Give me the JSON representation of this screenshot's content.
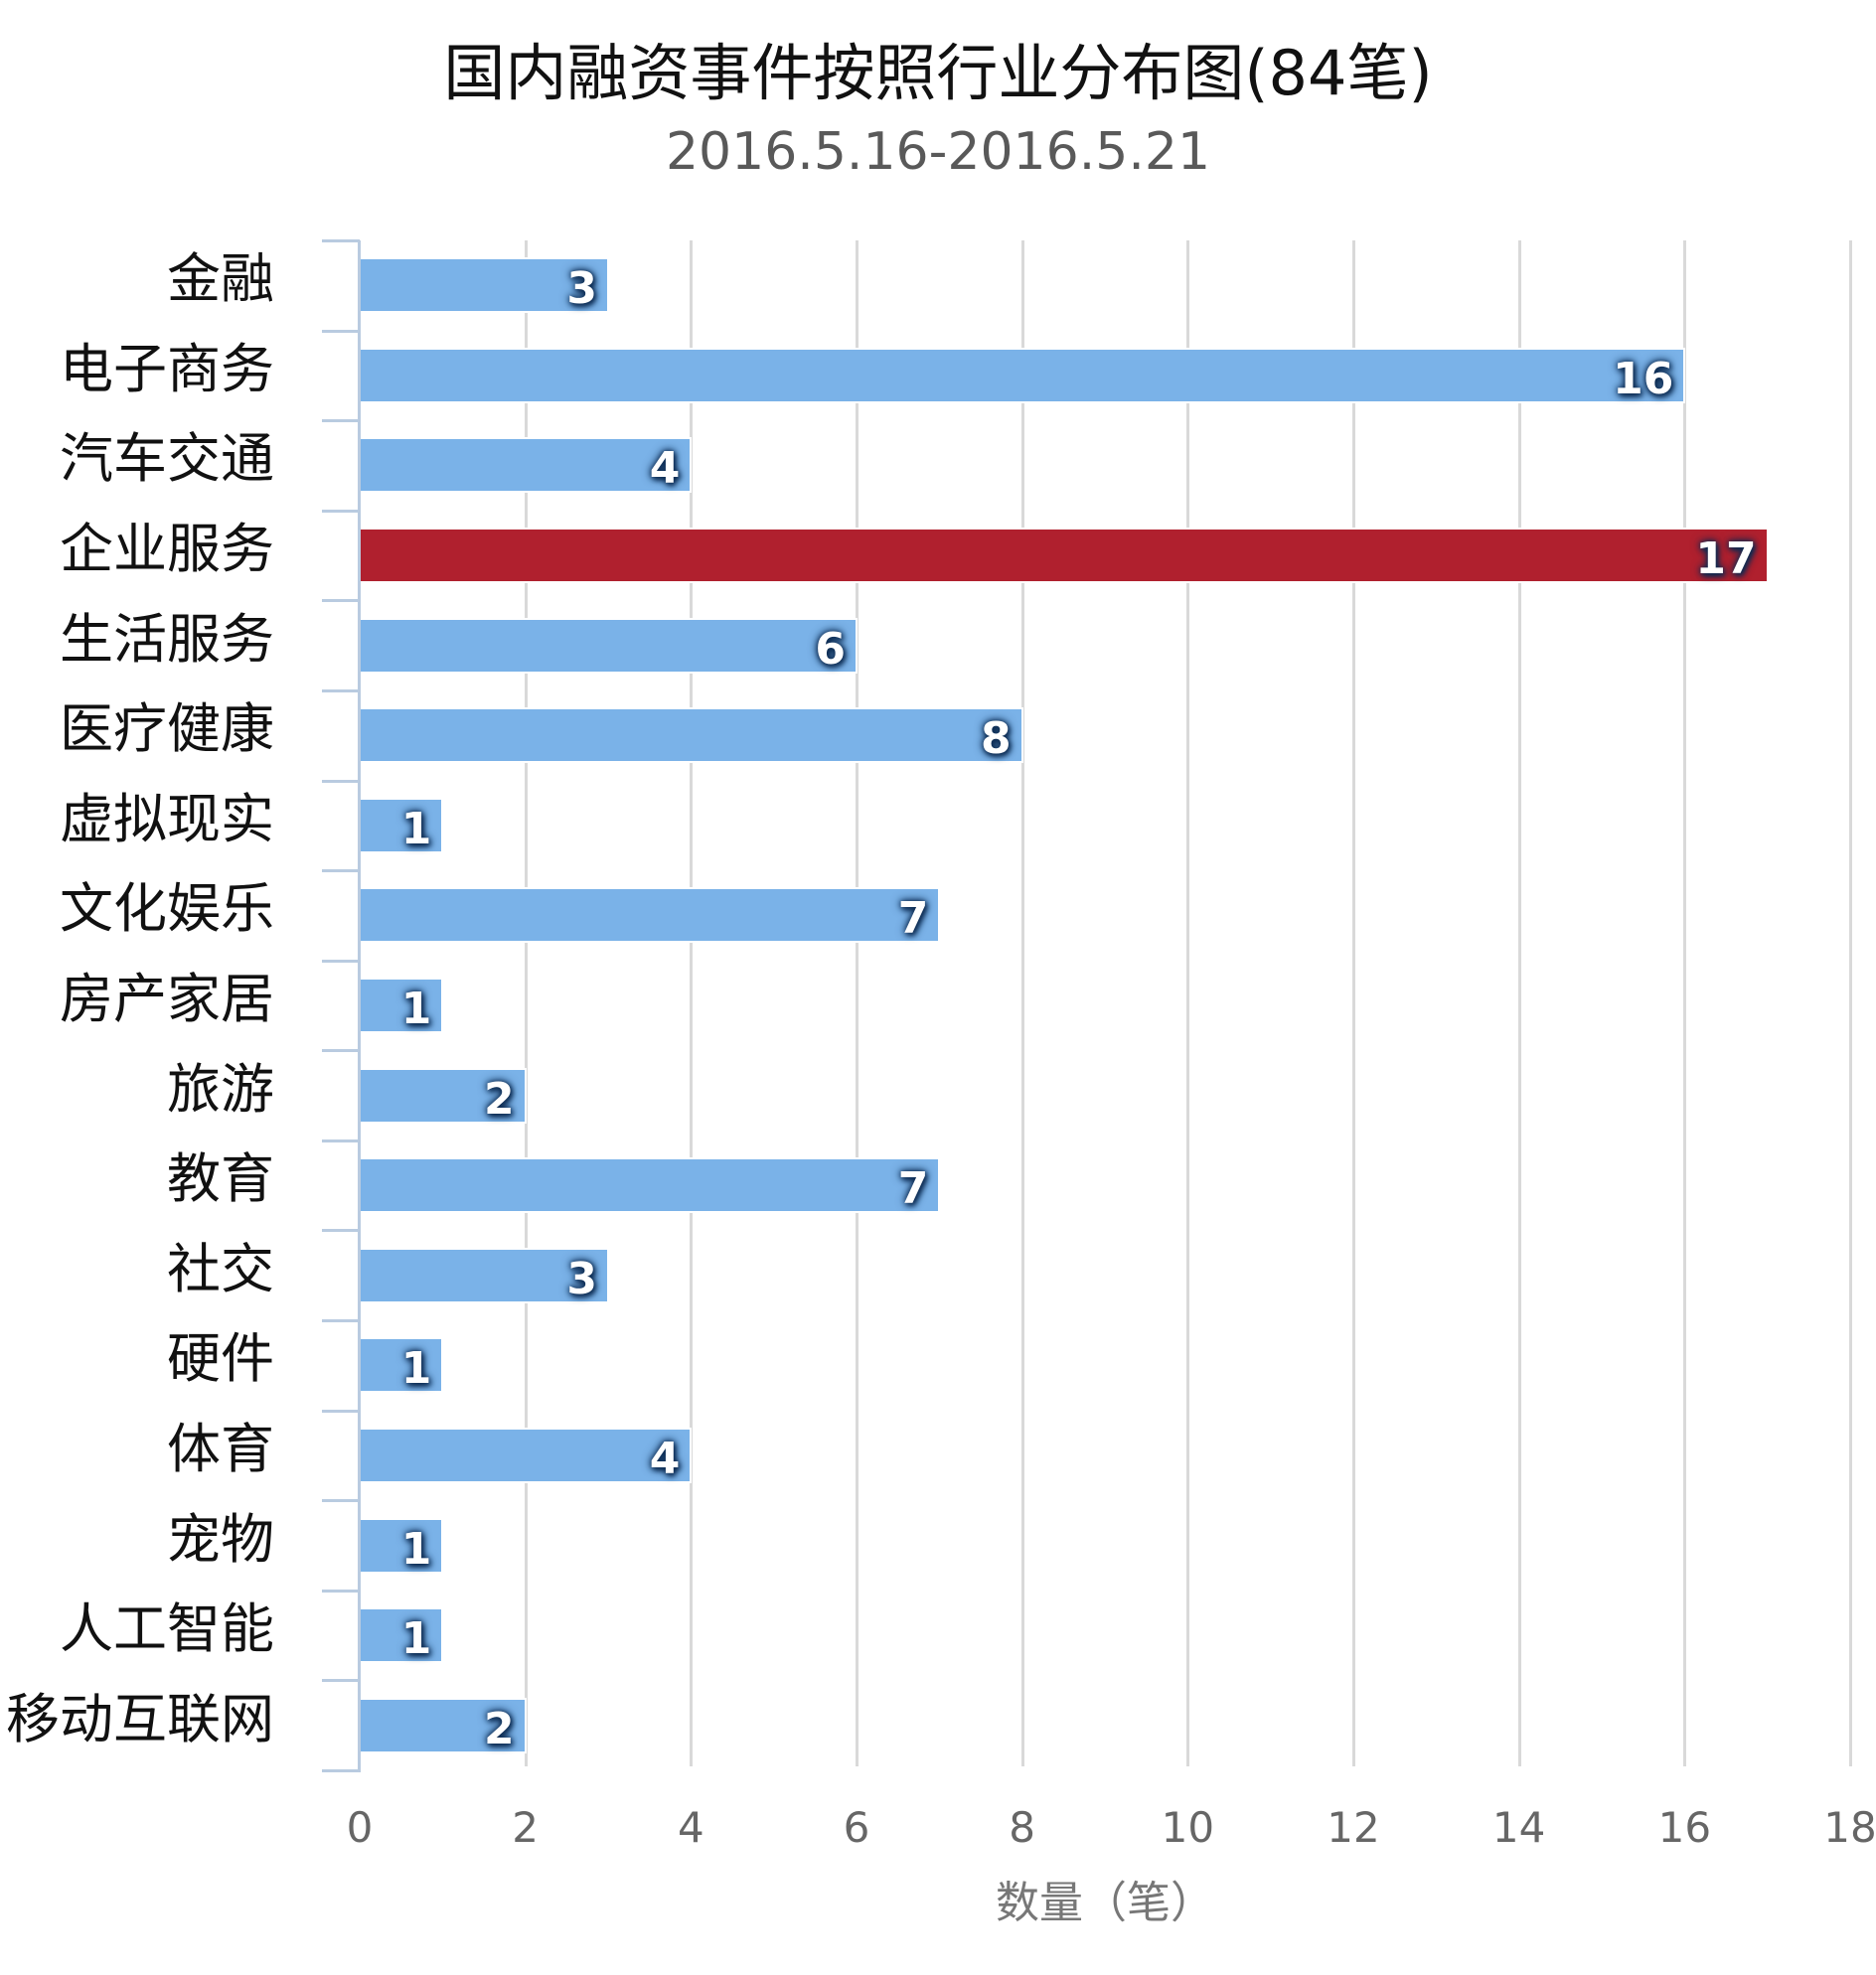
{
  "chart": {
    "title": "国内融资事件按照行业分布图(84笔)",
    "subtitle": "2016.5.16-2016.5.21",
    "x_axis_title": "数量（笔）"
  },
  "colors": {
    "bar_default": "#7ab2e8",
    "bar_highlight": "#b0202e",
    "gridline": "#d9d9d9",
    "axis": "#b9cbe0"
  },
  "chart_data": {
    "type": "bar",
    "orientation": "horizontal",
    "title": "国内融资事件按照行业分布图(84笔)",
    "subtitle": "2016.5.16-2016.5.21",
    "xlabel": "数量（笔）",
    "ylabel": "",
    "categories": [
      "金融",
      "电子商务",
      "汽车交通",
      "企业服务",
      "生活服务",
      "医疗健康",
      "虚拟现实",
      "文化娱乐",
      "房产家居",
      "旅游",
      "教育",
      "社交",
      "硬件",
      "体育",
      "宠物",
      "人工智能",
      "移动互联网"
    ],
    "values": [
      3,
      16,
      4,
      17,
      6,
      8,
      1,
      7,
      1,
      2,
      7,
      3,
      1,
      4,
      1,
      1,
      2
    ],
    "highlight_index": 3,
    "data_labels": [
      "3",
      "16",
      "4",
      "17",
      "6",
      "8",
      "1",
      "7",
      "1",
      "2",
      "7",
      "3",
      "1",
      "4",
      "1",
      "1",
      "2"
    ],
    "xlim": [
      0,
      18
    ],
    "x_ticks": [
      "0",
      "2",
      "4",
      "6",
      "8",
      "10",
      "12",
      "14",
      "16",
      "18"
    ],
    "grid": "vertical",
    "legend": "none",
    "total": 84
  }
}
